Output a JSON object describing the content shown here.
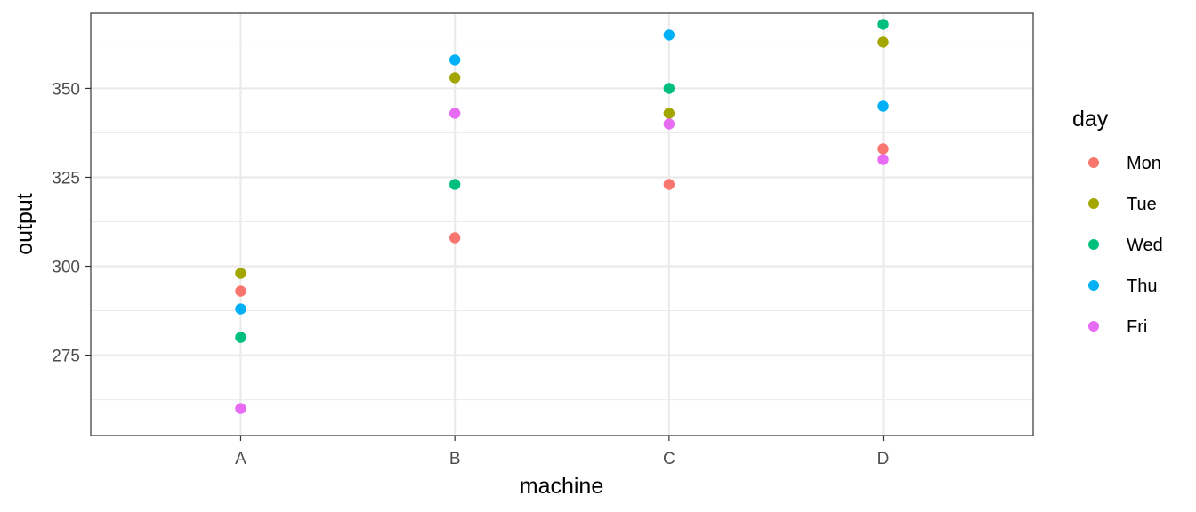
{
  "chart_data": {
    "type": "scatter",
    "xlabel": "machine",
    "ylabel": "output",
    "categories": [
      "A",
      "B",
      "C",
      "D"
    ],
    "y_ticks": [
      275,
      300,
      325,
      350
    ],
    "ylim": [
      252.4,
      371.1
    ],
    "grid": true,
    "legend": {
      "title": "day",
      "placement": "right"
    },
    "series": [
      {
        "name": "Mon",
        "color": "#F8766D",
        "values": [
          293,
          308,
          323,
          333
        ]
      },
      {
        "name": "Tue",
        "color": "#A3A500",
        "values": [
          298,
          353,
          343,
          363
        ]
      },
      {
        "name": "Wed",
        "color": "#00BF7D",
        "values": [
          280,
          323,
          350,
          368
        ]
      },
      {
        "name": "Thu",
        "color": "#00B0F6",
        "values": [
          288,
          358,
          365,
          345
        ]
      },
      {
        "name": "Fri",
        "color": "#E76BF3",
        "values": [
          260,
          343,
          340,
          330
        ]
      }
    ]
  }
}
